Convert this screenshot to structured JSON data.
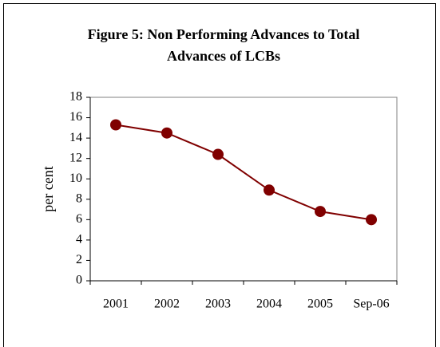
{
  "chart_data": {
    "type": "line",
    "title": [
      "Figure 5: Non Performing Advances to Total",
      "Advances of LCBs"
    ],
    "y_label": "per cent",
    "categories": [
      "2001",
      "2002",
      "2003",
      "2004",
      "2005",
      "Sep-06"
    ],
    "values": [
      15.3,
      14.5,
      12.4,
      8.9,
      6.8,
      6.0
    ],
    "color": "#800000",
    "ylim": [
      0,
      18
    ],
    "yticks": [
      0,
      2,
      4,
      6,
      8,
      10,
      12,
      14,
      16,
      18
    ],
    "grid": false
  }
}
